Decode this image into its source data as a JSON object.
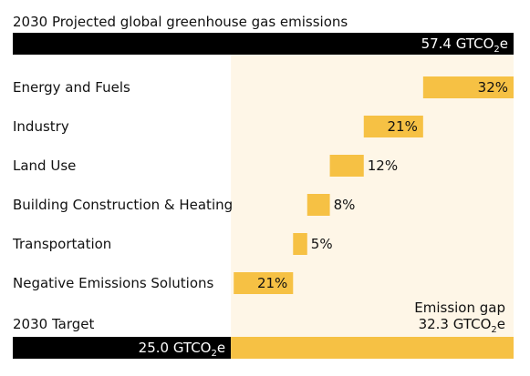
{
  "chart_data": {
    "type": "bar",
    "title": "2030 Projected global greenhouse gas emissions",
    "total": {
      "value": 57.4,
      "label": "57.4 GTCO",
      "sub": "2",
      "suffix": "e"
    },
    "categories": [
      "Energy and Fuels",
      "Industry",
      "Land Use",
      "Building Construction & Heating",
      "Transportation",
      "Negative Emissions Solutions"
    ],
    "values": [
      32,
      21,
      12,
      8,
      5,
      21
    ],
    "value_labels": [
      "32%",
      "21%",
      "12%",
      "8%",
      "5%",
      "21%"
    ],
    "target": {
      "label": "2030 Target",
      "value": 25.0,
      "value_label": "25.0 GTCO",
      "sub": "2",
      "suffix": "e"
    },
    "gap": {
      "label": "Emission gap",
      "value": 32.3,
      "value_label": "32.3 GTCO",
      "sub": "2",
      "suffix": "e"
    }
  },
  "colors": {
    "bar": "#F6C144",
    "background_band": "#FEF6E7",
    "dark": "#000000",
    "text": "#111111"
  }
}
